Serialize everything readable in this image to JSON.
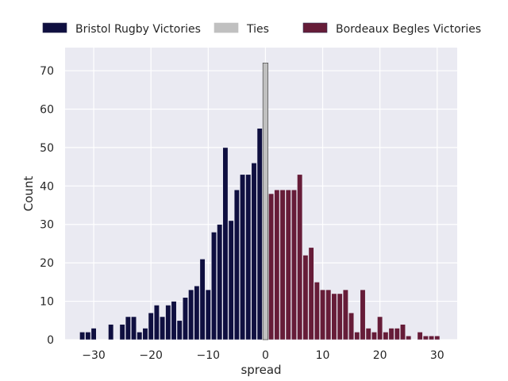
{
  "chart_data": {
    "type": "bar",
    "xlabel": "spread",
    "ylabel": "Count",
    "xlim": [
      -35,
      33.5
    ],
    "ylim": [
      0,
      76
    ],
    "xticks": [
      -30,
      -20,
      -10,
      0,
      10,
      20,
      30
    ],
    "yticks": [
      0,
      10,
      20,
      30,
      40,
      50,
      60,
      70
    ],
    "xtick_labels": [
      "−30",
      "−20",
      "−10",
      "0",
      "10",
      "20",
      "30"
    ],
    "ytick_labels": [
      "0",
      "10",
      "20",
      "30",
      "40",
      "50",
      "60",
      "70"
    ],
    "grid": true,
    "legend": "top, above plot",
    "bar_width": 0.9,
    "series": [
      {
        "name": "Bristol Rugby Victories",
        "color": "#0f0f40",
        "x": [
          -32,
          -31,
          -30,
          -29,
          -28,
          -27,
          -26,
          -25,
          -24,
          -23,
          -22,
          -21,
          -20,
          -19,
          -18,
          -17,
          -16,
          -15,
          -14,
          -13,
          -12,
          -11,
          -10,
          -9,
          -8,
          -7,
          -6,
          -5,
          -4,
          -3,
          -2,
          -1
        ],
        "values": [
          2,
          2,
          3,
          0,
          0,
          4,
          0,
          4,
          6,
          6,
          2,
          3,
          7,
          9,
          6,
          9,
          10,
          5,
          11,
          13,
          14,
          21,
          13,
          28,
          30,
          50,
          31,
          39,
          43,
          43,
          46,
          55
        ]
      },
      {
        "name": "Ties",
        "color": "#c0c0c0",
        "x": [
          0
        ],
        "values": [
          72
        ]
      },
      {
        "name": "Bordeaux Begles Victories",
        "color": "#661c38",
        "x": [
          1,
          2,
          3,
          4,
          5,
          6,
          7,
          8,
          9,
          10,
          11,
          12,
          13,
          14,
          15,
          16,
          17,
          18,
          19,
          20,
          21,
          22,
          23,
          24,
          25,
          26,
          27,
          28,
          29,
          30
        ],
        "values": [
          38,
          39,
          39,
          39,
          39,
          43,
          22,
          24,
          15,
          13,
          13,
          12,
          12,
          13,
          7,
          2,
          13,
          3,
          2,
          6,
          2,
          3,
          3,
          4,
          1,
          0,
          2,
          1,
          1,
          1
        ]
      }
    ]
  }
}
